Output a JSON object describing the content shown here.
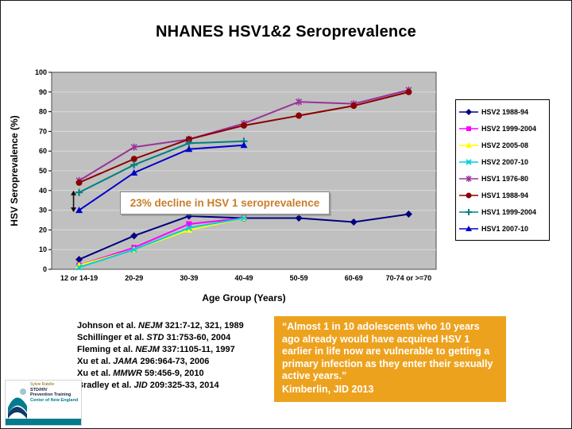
{
  "slide": {
    "title": "NHANES HSV1&2 Seroprevalence"
  },
  "chart_data": {
    "type": "line",
    "title": "NHANES HSV1&2 Seroprevalence",
    "xlabel": "Age Group (Years)",
    "ylabel": "HSV Seroprevalence (%)",
    "ylim": [
      0,
      100
    ],
    "ytick_step": 10,
    "grid": true,
    "legend_position": "right",
    "plot_bg": "#C0C0C0",
    "categories": [
      "12 or 14-19",
      "20-29",
      "30-39",
      "40-49",
      "50-59",
      "60-69",
      "70-74 or >=70"
    ],
    "series": [
      {
        "name": "HSV2 1988-94",
        "color": "#000080",
        "marker": "diamond",
        "values": [
          5,
          17,
          27,
          26,
          26,
          24,
          28
        ]
      },
      {
        "name": "HSV2 1999-2004",
        "color": "#FF00FF",
        "marker": "square",
        "values": [
          2,
          11,
          23,
          26,
          null,
          null,
          null
        ]
      },
      {
        "name": "HSV2 2005-08",
        "color": "#FFFF00",
        "marker": "triangle",
        "values": [
          2,
          10,
          20,
          26,
          null,
          null,
          null
        ]
      },
      {
        "name": "HSV2 2007-10",
        "color": "#00CCDD",
        "marker": "x",
        "values": [
          1,
          10,
          21,
          26,
          null,
          null,
          null
        ]
      },
      {
        "name": "HSV1 1976-80",
        "color": "#993399",
        "marker": "asterisk",
        "values": [
          45,
          62,
          66,
          74,
          85,
          84,
          91
        ]
      },
      {
        "name": "HSV1 1988-94",
        "color": "#8B0000",
        "marker": "circle",
        "values": [
          44,
          56,
          66,
          73,
          78,
          83,
          90
        ]
      },
      {
        "name": "HSV1 1999-2004",
        "color": "#008080",
        "marker": "plus",
        "values": [
          39,
          53,
          64,
          65,
          null,
          null,
          null
        ]
      },
      {
        "name": "HSV1 2007-10",
        "color": "#0000CC",
        "marker": "triangle",
        "values": [
          30,
          49,
          61,
          63,
          null,
          null,
          null
        ]
      }
    ],
    "annotation": {
      "text": "23% decline in HSV 1 seroprevalence",
      "text_color": "#C87E2A",
      "arrow": {
        "category_index": 0,
        "from_value": 40,
        "to_value": 29
      }
    }
  },
  "citations": [
    {
      "pre": "Johnson et al. ",
      "journal": "NEJM",
      "post": " 321:7-12, 321, 1989"
    },
    {
      "pre": "Schillinger et al. ",
      "journal": "STD",
      "post": " 31:753-60, 2004"
    },
    {
      "pre": "Fleming et al. ",
      "journal": "NEJM",
      "post": " 337:1105-11, 1997"
    },
    {
      "pre": "Xu et al. ",
      "journal": "JAMA",
      "post": " 296:964-73, 2006"
    },
    {
      "pre": "Xu et al. ",
      "journal": "MMWR",
      "post": " 59:456-9, 2010"
    },
    {
      "pre": "Bradley et al. ",
      "journal": "JID",
      "post": " 209:325-33, 2014"
    }
  ],
  "quote": {
    "text": "“Almost 1 in 10 adolescents who 10 years ago already would have acquired HSV 1 earlier in life now are vulnerable to getting a primary infection as they enter their sexually active years.”",
    "attribution": "Kimberlin, JID 2013",
    "bg_color": "#EDA21E",
    "text_color": "#FFFFFF"
  },
  "logo": {
    "lines": [
      "Sylvie Ratelle",
      "STD/HIV",
      "Prevention Training",
      "Center of New England"
    ],
    "accent_color": "#007B8F"
  }
}
